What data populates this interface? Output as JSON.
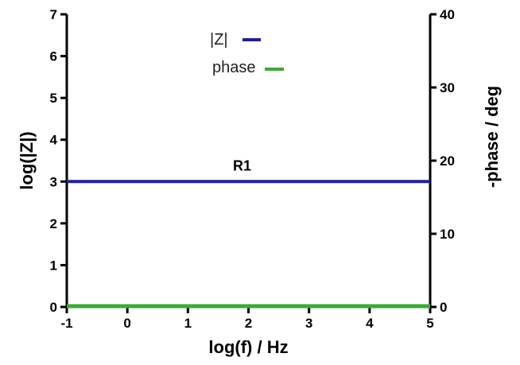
{
  "chart_data": {
    "type": "line",
    "xlabel": "log(f) / Hz",
    "ylabel": "log(|Z|)",
    "y2label": "-phase / deg",
    "xlim": [
      -1,
      5
    ],
    "ylim": [
      0,
      7
    ],
    "y2lim": [
      0,
      40
    ],
    "xticks": [
      "-1",
      "0",
      "1",
      "2",
      "3",
      "4",
      "5"
    ],
    "yticks": [
      "0",
      "1",
      "2",
      "3",
      "4",
      "5",
      "6",
      "7"
    ],
    "y2ticks": [
      "0",
      "10",
      "20",
      "30",
      "40"
    ],
    "grid": false,
    "legend_position": "top-center",
    "series": [
      {
        "name": "|Z|",
        "axis": "left",
        "color": "#1f1fa8",
        "x": [
          -1,
          5
        ],
        "y": [
          3,
          3
        ]
      },
      {
        "name": "phase",
        "axis": "right",
        "color": "#3aaa35",
        "x": [
          -1,
          5
        ],
        "y": [
          0,
          0
        ]
      }
    ],
    "annotations": [
      {
        "text": "R1",
        "x": 2,
        "y": 3
      }
    ]
  }
}
